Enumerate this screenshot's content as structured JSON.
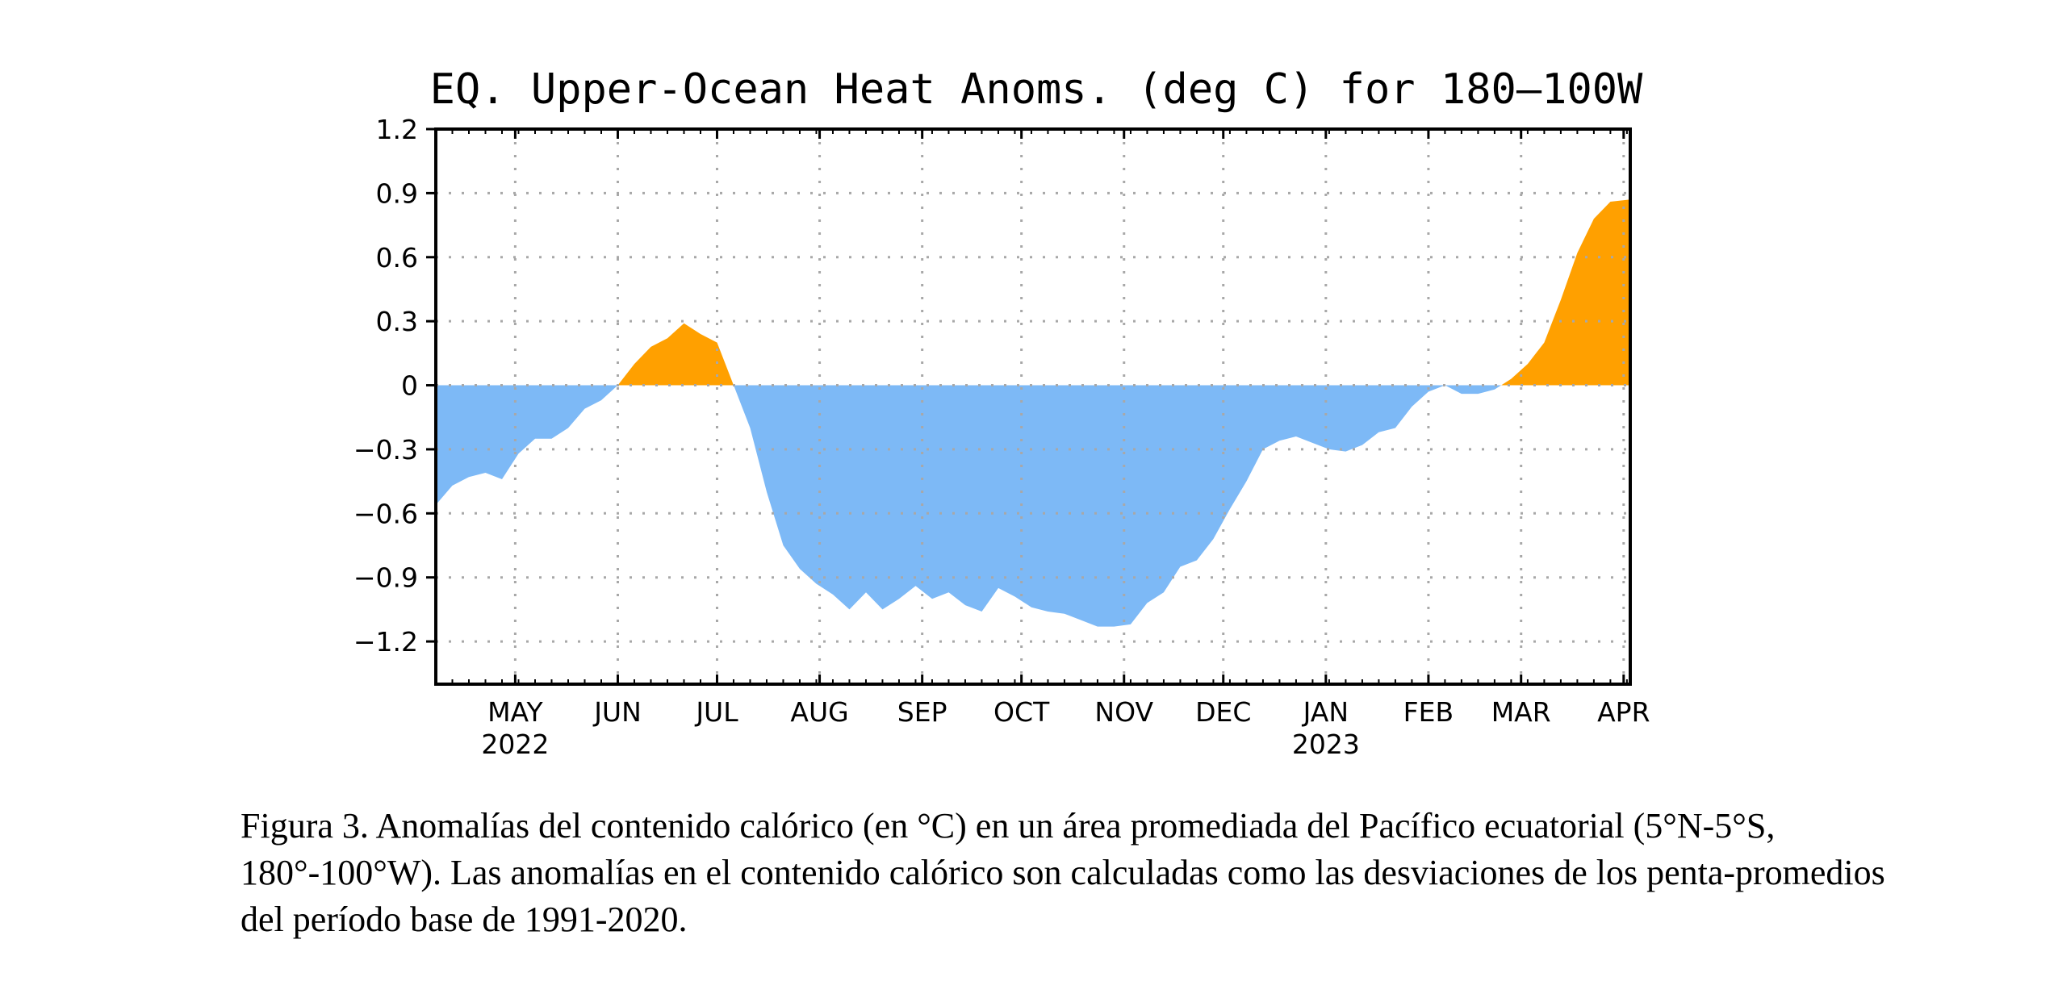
{
  "chart_data": {
    "type": "area",
    "title": "EQ. Upper-Ocean Heat Anoms. (deg C) for 180—100W",
    "xlabel": "",
    "ylabel": "",
    "ylim": [
      -1.4,
      1.2
    ],
    "yticks": [
      1.2,
      0.9,
      0.6,
      0.3,
      0,
      -0.3,
      -0.6,
      -0.9,
      -1.2
    ],
    "ytick_labels": [
      "1.2",
      "0.9",
      "0.6",
      "0.3",
      "0",
      "−0.3",
      "−0.6",
      "−0.9",
      "−1.2"
    ],
    "x_range": [
      "2022-04-07",
      "2023-04-03"
    ],
    "month_ticks": [
      {
        "date": "2022-05-01",
        "label": "MAY",
        "year": "2022"
      },
      {
        "date": "2022-06-01",
        "label": "JUN",
        "year": ""
      },
      {
        "date": "2022-07-01",
        "label": "JUL",
        "year": ""
      },
      {
        "date": "2022-08-01",
        "label": "AUG",
        "year": ""
      },
      {
        "date": "2022-09-01",
        "label": "SEP",
        "year": ""
      },
      {
        "date": "2022-10-01",
        "label": "OCT",
        "year": ""
      },
      {
        "date": "2022-11-01",
        "label": "NOV",
        "year": ""
      },
      {
        "date": "2022-12-01",
        "label": "DEC",
        "year": ""
      },
      {
        "date": "2023-01-01",
        "label": "JAN",
        "year": "2023"
      },
      {
        "date": "2023-02-01",
        "label": "FEB",
        "year": ""
      },
      {
        "date": "2023-03-01",
        "label": "MAR",
        "year": ""
      },
      {
        "date": "2023-04-01",
        "label": "APR",
        "year": ""
      }
    ],
    "grid": true,
    "colors": {
      "positive": "#FFA000",
      "negative": "#7DB9F6",
      "axis": "#000000",
      "grid": "#A8A8A8"
    },
    "series": [
      {
        "x": [
          "2022-04-07",
          "2022-04-12",
          "2022-04-17",
          "2022-04-22",
          "2022-04-27",
          "2022-05-02",
          "2022-05-07",
          "2022-05-12",
          "2022-05-17",
          "2022-05-22",
          "2022-05-27",
          "2022-06-01",
          "2022-06-06",
          "2022-06-11",
          "2022-06-16",
          "2022-06-21",
          "2022-06-26",
          "2022-07-01",
          "2022-07-06",
          "2022-07-11",
          "2022-07-16",
          "2022-07-21",
          "2022-07-26",
          "2022-07-31",
          "2022-08-05",
          "2022-08-10",
          "2022-08-15",
          "2022-08-20",
          "2022-08-25",
          "2022-08-30",
          "2022-09-04",
          "2022-09-09",
          "2022-09-14",
          "2022-09-19",
          "2022-09-24",
          "2022-09-29",
          "2022-10-04",
          "2022-10-09",
          "2022-10-14",
          "2022-10-19",
          "2022-10-24",
          "2022-10-29",
          "2022-11-03",
          "2022-11-08",
          "2022-11-13",
          "2022-11-18",
          "2022-11-23",
          "2022-11-28",
          "2022-12-03",
          "2022-12-08",
          "2022-12-13",
          "2022-12-18",
          "2022-12-23",
          "2022-12-28",
          "2023-01-02",
          "2023-01-07",
          "2023-01-12",
          "2023-01-17",
          "2023-01-22",
          "2023-01-27",
          "2023-02-01",
          "2023-02-06",
          "2023-02-11",
          "2023-02-16",
          "2023-02-21",
          "2023-02-26",
          "2023-03-03",
          "2023-03-08",
          "2023-03-13",
          "2023-03-18",
          "2023-03-23",
          "2023-03-28",
          "2023-04-03"
        ],
        "values": [
          -0.56,
          -0.47,
          -0.43,
          -0.41,
          -0.44,
          -0.32,
          -0.25,
          -0.25,
          -0.2,
          -0.11,
          -0.07,
          0.0,
          0.1,
          0.18,
          0.22,
          0.29,
          0.24,
          0.2,
          0.0,
          -0.2,
          -0.5,
          -0.75,
          -0.86,
          -0.93,
          -0.98,
          -1.05,
          -0.97,
          -1.05,
          -1.0,
          -0.94,
          -1.0,
          -0.97,
          -1.03,
          -1.06,
          -0.95,
          -0.99,
          -1.04,
          -1.06,
          -1.07,
          -1.1,
          -1.13,
          -1.13,
          -1.12,
          -1.02,
          -0.97,
          -0.85,
          -0.82,
          -0.72,
          -0.58,
          -0.45,
          -0.3,
          -0.26,
          -0.24,
          -0.27,
          -0.3,
          -0.31,
          -0.28,
          -0.22,
          -0.2,
          -0.1,
          -0.03,
          0.0,
          -0.04,
          -0.04,
          -0.02,
          0.03,
          0.1,
          0.2,
          0.4,
          0.62,
          0.78,
          0.86,
          0.87
        ]
      }
    ]
  },
  "caption": "Figura 3. Anomalías del contenido calórico (en °C) en un área promediada del Pacífico ecuatorial (5°N-5°S, 180°-100°W). Las anomalías en el contenido calórico son calculadas como las desviaciones de los penta-promedios del período base de 1991-2020."
}
